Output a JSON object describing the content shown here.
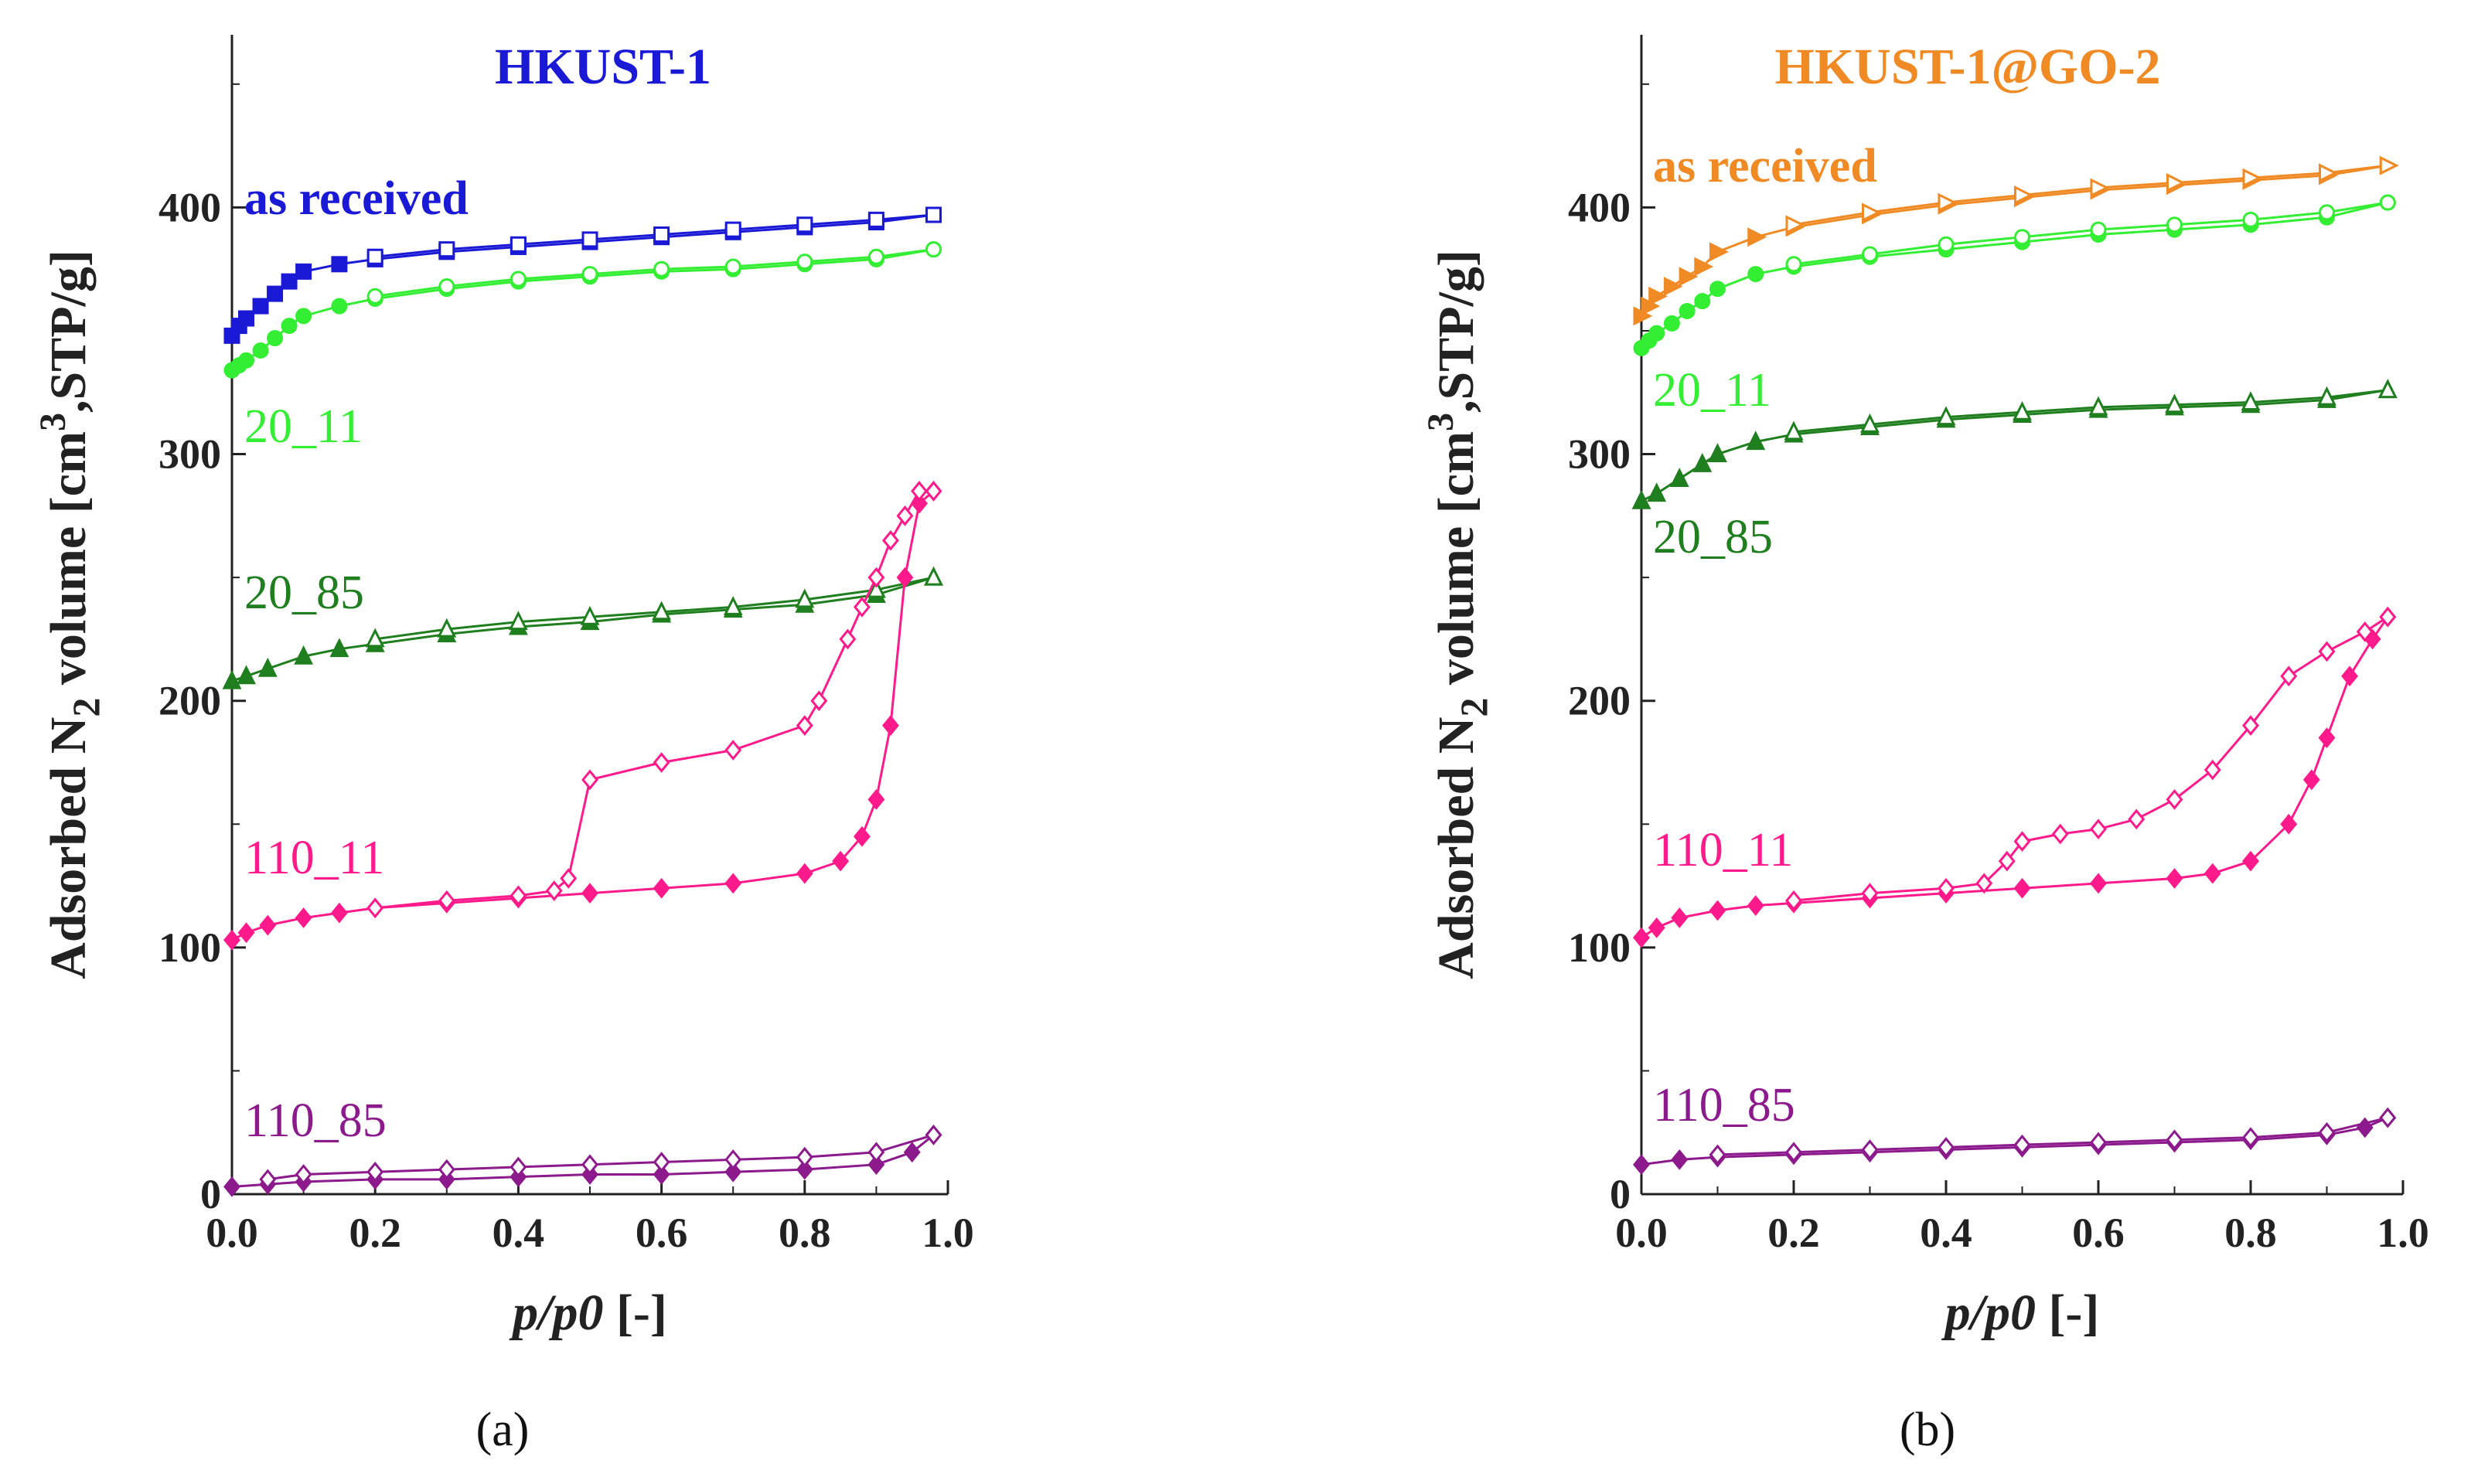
{
  "chart_data": [
    {
      "type": "scatter",
      "title": "HKUST-1",
      "title_color": "#1a1ad6",
      "panel_label": "(a)",
      "xlabel_main": "p/p0",
      "xlabel_unit": "[-]",
      "ylabel_pre": "Adsorbed N",
      "ylabel_sub": "2",
      "ylabel_mid": " volume [cm",
      "ylabel_sup": "3",
      "ylabel_post": ",STP/g]",
      "xlim": [
        0,
        1.0
      ],
      "ylim": [
        0,
        470
      ],
      "xticks": [
        "0.0",
        "0.2",
        "0.4",
        "0.6",
        "0.8",
        "1.0"
      ],
      "yticks": [
        "0",
        "100",
        "200",
        "300",
        "400"
      ],
      "series": [
        {
          "name": "as received",
          "color": "#1a1ad6",
          "marker": "square",
          "x": [
            0,
            0.01,
            0.02,
            0.04,
            0.06,
            0.08,
            0.1,
            0.15,
            0.2,
            0.3,
            0.4,
            0.5,
            0.6,
            0.7,
            0.8,
            0.9,
            0.98
          ],
          "y": [
            348,
            352,
            355,
            360,
            365,
            370,
            374,
            377,
            379,
            382,
            384,
            386,
            388,
            390,
            392,
            394,
            397
          ],
          "x_des": [
            0.98,
            0.9,
            0.8,
            0.7,
            0.6,
            0.5,
            0.4,
            0.3,
            0.2
          ],
          "y_des": [
            397,
            395,
            393,
            391,
            389,
            387,
            385,
            383,
            380
          ]
        },
        {
          "name": "20_11",
          "color": "#33ee33",
          "marker": "circle",
          "x": [
            0,
            0.01,
            0.02,
            0.04,
            0.06,
            0.08,
            0.1,
            0.15,
            0.2,
            0.3,
            0.4,
            0.5,
            0.6,
            0.7,
            0.8,
            0.9,
            0.98
          ],
          "y": [
            334,
            336,
            338,
            342,
            347,
            352,
            356,
            360,
            363,
            367,
            370,
            372,
            374,
            375,
            377,
            379,
            383
          ],
          "x_des": [
            0.98,
            0.9,
            0.8,
            0.7,
            0.6,
            0.5,
            0.4,
            0.3,
            0.2
          ],
          "y_des": [
            383,
            380,
            378,
            376,
            375,
            373,
            371,
            368,
            364
          ]
        },
        {
          "name": "20_85",
          "color": "#1f7f1f",
          "marker": "triangle",
          "x": [
            0,
            0.02,
            0.05,
            0.1,
            0.15,
            0.2,
            0.3,
            0.4,
            0.5,
            0.6,
            0.7,
            0.8,
            0.9,
            0.98
          ],
          "y": [
            208,
            210,
            213,
            218,
            221,
            223,
            227,
            230,
            232,
            235,
            237,
            239,
            243,
            250
          ],
          "x_des": [
            0.98,
            0.9,
            0.8,
            0.7,
            0.6,
            0.5,
            0.4,
            0.3,
            0.2
          ],
          "y_des": [
            250,
            245,
            241,
            238,
            236,
            234,
            232,
            229,
            225
          ]
        },
        {
          "name": "110_11",
          "color": "#ff1a8c",
          "marker": "diamond",
          "x": [
            0,
            0.02,
            0.05,
            0.1,
            0.15,
            0.2,
            0.3,
            0.4,
            0.5,
            0.6,
            0.7,
            0.8,
            0.85,
            0.88,
            0.9,
            0.92,
            0.94,
            0.96,
            0.98
          ],
          "y": [
            103,
            106,
            109,
            112,
            114,
            116,
            118,
            120,
            122,
            124,
            126,
            130,
            135,
            145,
            160,
            190,
            250,
            280,
            285
          ],
          "x_des": [
            0.98,
            0.96,
            0.94,
            0.92,
            0.9,
            0.88,
            0.86,
            0.82,
            0.8,
            0.7,
            0.6,
            0.5,
            0.47,
            0.45,
            0.4,
            0.3,
            0.2
          ],
          "y_des": [
            285,
            285,
            275,
            265,
            250,
            238,
            225,
            200,
            190,
            180,
            175,
            168,
            128,
            123,
            121,
            119,
            116
          ]
        },
        {
          "name": "110_85",
          "color": "#8c1a8c",
          "marker": "diamond",
          "x": [
            0,
            0.05,
            0.1,
            0.2,
            0.3,
            0.4,
            0.5,
            0.6,
            0.7,
            0.8,
            0.9,
            0.95,
            0.98
          ],
          "y": [
            3,
            4,
            5,
            6,
            6,
            7,
            8,
            8,
            9,
            10,
            12,
            17,
            24
          ],
          "x_des": [
            0.98,
            0.9,
            0.8,
            0.7,
            0.6,
            0.5,
            0.4,
            0.3,
            0.2,
            0.1,
            0.05
          ],
          "y_des": [
            24,
            17,
            15,
            14,
            13,
            12,
            11,
            10,
            9,
            8,
            6
          ]
        }
      ]
    },
    {
      "type": "scatter",
      "title": "HKUST-1@GO-2",
      "title_color": "#f08a24",
      "panel_label": "(b)",
      "xlabel_main": "p/p0",
      "xlabel_unit": "[-]",
      "ylabel_pre": "Adsorbed N",
      "ylabel_sub": "2",
      "ylabel_mid": " volume [cm",
      "ylabel_sup": "3",
      "ylabel_post": ",STP/g]",
      "xlim": [
        0,
        1.0
      ],
      "ylim": [
        0,
        470
      ],
      "xticks": [
        "0.0",
        "0.2",
        "0.4",
        "0.6",
        "0.8",
        "1.0"
      ],
      "yticks": [
        "0",
        "100",
        "200",
        "300",
        "400"
      ],
      "series": [
        {
          "name": "as received",
          "color": "#f08a24",
          "marker": "triangle-right",
          "x": [
            0,
            0.01,
            0.02,
            0.04,
            0.06,
            0.08,
            0.1,
            0.15,
            0.2,
            0.3,
            0.4,
            0.5,
            0.6,
            0.7,
            0.8,
            0.9,
            0.98
          ],
          "y": [
            356,
            360,
            364,
            368,
            372,
            376,
            382,
            388,
            392,
            397,
            401,
            404,
            407,
            409,
            411,
            413,
            417
          ],
          "x_des": [
            0.98,
            0.9,
            0.8,
            0.7,
            0.6,
            0.5,
            0.4,
            0.3,
            0.2
          ],
          "y_des": [
            417,
            414,
            412,
            410,
            408,
            405,
            402,
            398,
            393
          ]
        },
        {
          "name": "20_11",
          "color": "#33ee33",
          "marker": "circle",
          "x": [
            0,
            0.01,
            0.02,
            0.04,
            0.06,
            0.08,
            0.1,
            0.15,
            0.2,
            0.3,
            0.4,
            0.5,
            0.6,
            0.7,
            0.8,
            0.9,
            0.98
          ],
          "y": [
            343,
            346,
            349,
            353,
            358,
            362,
            367,
            373,
            376,
            380,
            383,
            386,
            389,
            391,
            393,
            396,
            402
          ],
          "x_des": [
            0.98,
            0.9,
            0.8,
            0.7,
            0.6,
            0.5,
            0.4,
            0.3,
            0.2
          ],
          "y_des": [
            402,
            398,
            395,
            393,
            391,
            388,
            385,
            381,
            377
          ]
        },
        {
          "name": "20_85",
          "color": "#1f7f1f",
          "marker": "triangle",
          "x": [
            0,
            0.02,
            0.05,
            0.08,
            0.1,
            0.15,
            0.2,
            0.3,
            0.4,
            0.5,
            0.6,
            0.7,
            0.8,
            0.9,
            0.98
          ],
          "y": [
            281,
            284,
            290,
            296,
            300,
            305,
            308,
            311,
            314,
            316,
            318,
            319,
            320,
            322,
            326
          ],
          "x_des": [
            0.98,
            0.9,
            0.8,
            0.7,
            0.6,
            0.5,
            0.4,
            0.3,
            0.2
          ],
          "y_des": [
            326,
            323,
            321,
            320,
            319,
            317,
            315,
            312,
            309
          ]
        },
        {
          "name": "110_11",
          "color": "#ff1a8c",
          "marker": "diamond",
          "x": [
            0,
            0.02,
            0.05,
            0.1,
            0.15,
            0.2,
            0.3,
            0.4,
            0.5,
            0.6,
            0.7,
            0.75,
            0.8,
            0.85,
            0.88,
            0.9,
            0.93,
            0.96,
            0.98
          ],
          "y": [
            104,
            108,
            112,
            115,
            117,
            118,
            120,
            122,
            124,
            126,
            128,
            130,
            135,
            150,
            168,
            185,
            210,
            225,
            234
          ],
          "x_des": [
            0.98,
            0.95,
            0.9,
            0.85,
            0.8,
            0.75,
            0.7,
            0.65,
            0.6,
            0.55,
            0.5,
            0.48,
            0.45,
            0.4,
            0.3,
            0.2
          ],
          "y_des": [
            234,
            228,
            220,
            210,
            190,
            172,
            160,
            152,
            148,
            146,
            143,
            135,
            126,
            124,
            122,
            119
          ]
        },
        {
          "name": "110_85",
          "color": "#8c1a8c",
          "marker": "diamond",
          "x": [
            0,
            0.05,
            0.1,
            0.2,
            0.3,
            0.4,
            0.5,
            0.6,
            0.7,
            0.8,
            0.9,
            0.95,
            0.98
          ],
          "y": [
            12,
            14,
            15,
            16,
            17,
            18,
            19,
            20,
            21,
            22,
            24,
            27,
            31
          ],
          "x_des": [
            0.98,
            0.9,
            0.8,
            0.7,
            0.6,
            0.5,
            0.4,
            0.3,
            0.2,
            0.1
          ],
          "y_des": [
            31,
            25,
            23,
            22,
            21,
            20,
            19,
            18,
            17,
            16
          ]
        }
      ]
    }
  ]
}
